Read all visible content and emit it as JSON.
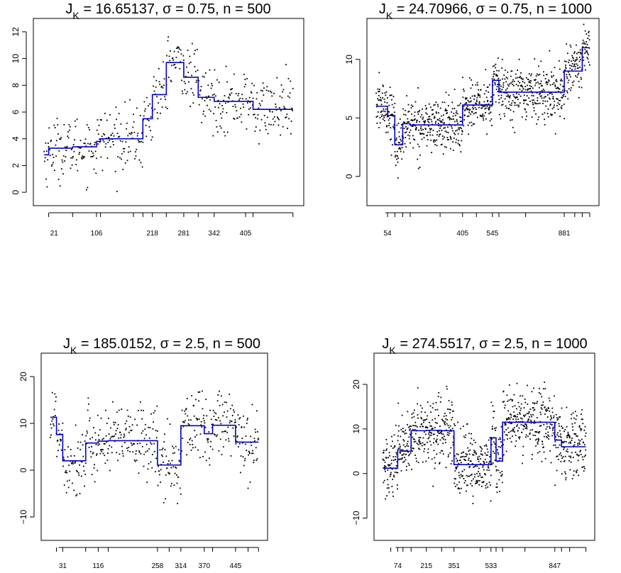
{
  "panels": [
    {
      "title": {
        "k": "K",
        "j_value": "16.65137",
        "sigma": "0.75",
        "n": "500"
      },
      "ylim": [
        -1,
        13
      ],
      "y_ticks": [
        0,
        2,
        4,
        6,
        8,
        10,
        12
      ],
      "changepoints": [
        21,
        106,
        218,
        281,
        342,
        405
      ],
      "changepoint_labels": [
        "21",
        "106",
        "218",
        "281",
        "342",
        "405"
      ]
    },
    {
      "title": {
        "k": "K",
        "j_value": "24.70966",
        "sigma": "0.75",
        "n": "1000"
      },
      "ylim": [
        -2.5,
        13.5
      ],
      "y_ticks": [
        0,
        5,
        10
      ],
      "changepoints": [
        54,
        405,
        545,
        881
      ],
      "changepoint_labels": [
        "54",
        "405",
        "545",
        "881"
      ]
    },
    {
      "title": {
        "k": "K",
        "j_value": "185.0152",
        "sigma": "2.5",
        "n": "500"
      },
      "ylim": [
        -15,
        25
      ],
      "y_ticks": [
        -10,
        0,
        10,
        20
      ],
      "changepoints": [
        31,
        116,
        258,
        314,
        370,
        445
      ],
      "changepoint_labels": [
        "31",
        "116",
        "258",
        "314",
        "370",
        "445"
      ]
    },
    {
      "title": {
        "k": "K",
        "j_value": "274.5517",
        "sigma": "2.5",
        "n": "1000"
      },
      "ylim": [
        -15,
        27
      ],
      "y_ticks": [
        -10,
        0,
        10,
        20
      ],
      "changepoints": [
        74,
        215,
        351,
        533,
        847
      ],
      "changepoint_labels": [
        "74",
        "215",
        "351",
        "533",
        "847"
      ]
    }
  ],
  "chart_data": [
    {
      "type": "scatter",
      "title": "J_K = 16.65137, σ = 0.75, n = 500",
      "n": 500,
      "sigma": 0.75,
      "xlim": [
        1,
        500
      ],
      "ylim": [
        -1,
        13
      ],
      "x_tick_labels": [
        "21",
        "106",
        "218",
        "281",
        "342",
        "405"
      ],
      "y_tick_labels": [
        "0",
        "2",
        "4",
        "6",
        "8",
        "10",
        "12"
      ],
      "fit": {
        "name": "piecewise-constant fit",
        "color": "#0000cc",
        "segments": [
          {
            "x": [
              1,
              10
            ],
            "y": 2.8
          },
          {
            "x": [
              10,
              58
            ],
            "y": 3.3
          },
          {
            "x": [
              58,
              106
            ],
            "y": 3.4
          },
          {
            "x": [
              106,
              114
            ],
            "y": 3.8
          },
          {
            "x": [
              114,
              180
            ],
            "y": 4.0
          },
          {
            "x": [
              180,
              199
            ],
            "y": 4.0
          },
          {
            "x": [
              199,
              218
            ],
            "y": 5.5
          },
          {
            "x": [
              218,
              246
            ],
            "y": 7.3
          },
          {
            "x": [
              246,
              281
            ],
            "y": 9.7
          },
          {
            "x": [
              281,
              310
            ],
            "y": 8.6
          },
          {
            "x": [
              310,
              342
            ],
            "y": 7.1
          },
          {
            "x": [
              342,
              405
            ],
            "y": 6.8
          },
          {
            "x": [
              405,
              420
            ],
            "y": 6.8
          },
          {
            "x": [
              420,
              500
            ],
            "y": 6.2
          }
        ]
      }
    },
    {
      "type": "scatter",
      "title": "J_K = 24.70966, σ = 0.75, n = 1000",
      "n": 1000,
      "sigma": 0.75,
      "xlim": [
        1,
        1000
      ],
      "ylim": [
        -2.5,
        13.5
      ],
      "x_tick_labels": [
        "54",
        "405",
        "545",
        "881"
      ],
      "y_tick_labels": [
        "0",
        "5",
        "10"
      ],
      "fit": {
        "name": "piecewise-constant fit",
        "color": "#0000cc",
        "segments": [
          {
            "x": [
              1,
              54
            ],
            "y": 6.0
          },
          {
            "x": [
              54,
              88
            ],
            "y": 5.2
          },
          {
            "x": [
              88,
              125
            ],
            "y": 2.7
          },
          {
            "x": [
              125,
              160
            ],
            "y": 4.5
          },
          {
            "x": [
              160,
              300
            ],
            "y": 4.4
          },
          {
            "x": [
              300,
              405
            ],
            "y": 4.4
          },
          {
            "x": [
              405,
              470
            ],
            "y": 6.1
          },
          {
            "x": [
              470,
              545
            ],
            "y": 6.1
          },
          {
            "x": [
              545,
              575
            ],
            "y": 8.2
          },
          {
            "x": [
              575,
              700
            ],
            "y": 7.2
          },
          {
            "x": [
              700,
              881
            ],
            "y": 7.2
          },
          {
            "x": [
              881,
              930
            ],
            "y": 9.0
          },
          {
            "x": [
              930,
              965
            ],
            "y": 9.0
          },
          {
            "x": [
              965,
              1000
            ],
            "y": 11.0
          }
        ]
      }
    },
    {
      "type": "scatter",
      "title": "J_K = 185.0152, σ = 2.5, n = 500",
      "n": 500,
      "sigma": 2.5,
      "xlim": [
        1,
        500
      ],
      "ylim": [
        -15,
        25
      ],
      "x_tick_labels": [
        "31",
        "116",
        "258",
        "314",
        "370",
        "445"
      ],
      "y_tick_labels": [
        "−10",
        "0",
        "10",
        "20"
      ],
      "fit": {
        "name": "piecewise-constant fit",
        "color": "#0000cc",
        "segments": [
          {
            "x": [
              1,
              16
            ],
            "y": 11.3
          },
          {
            "x": [
              16,
              31
            ],
            "y": 7.6
          },
          {
            "x": [
              31,
              86
            ],
            "y": 2.0
          },
          {
            "x": [
              86,
              116
            ],
            "y": 5.8
          },
          {
            "x": [
              116,
              140
            ],
            "y": 6.2
          },
          {
            "x": [
              140,
              258
            ],
            "y": 6.3
          },
          {
            "x": [
              258,
              286
            ],
            "y": 1.1
          },
          {
            "x": [
              286,
              314
            ],
            "y": 1.1
          },
          {
            "x": [
              314,
              370
            ],
            "y": 9.5
          },
          {
            "x": [
              370,
              390
            ],
            "y": 7.8
          },
          {
            "x": [
              390,
              445
            ],
            "y": 9.6
          },
          {
            "x": [
              445,
              475
            ],
            "y": 6.0
          },
          {
            "x": [
              475,
              500
            ],
            "y": 6.0
          }
        ]
      }
    },
    {
      "type": "scatter",
      "title": "J_K = 274.5517, σ = 2.5, n = 1000",
      "n": 1000,
      "sigma": 2.5,
      "xlim": [
        1,
        1000
      ],
      "ylim": [
        -15,
        27
      ],
      "x_tick_labels": [
        "74",
        "215",
        "351",
        "533",
        "847"
      ],
      "y_tick_labels": [
        "−10",
        "0",
        "10",
        "20"
      ],
      "fit": {
        "name": "piecewise-constant fit",
        "color": "#0000cc",
        "segments": [
          {
            "x": [
              1,
              40
            ],
            "y": 1.2
          },
          {
            "x": [
              40,
              74
            ],
            "y": 1.2
          },
          {
            "x": [
              74,
              100
            ],
            "y": 5.3
          },
          {
            "x": [
              100,
              140
            ],
            "y": 5.0
          },
          {
            "x": [
              140,
              215
            ],
            "y": 9.6
          },
          {
            "x": [
              215,
              290
            ],
            "y": 9.7
          },
          {
            "x": [
              290,
              351
            ],
            "y": 9.6
          },
          {
            "x": [
              351,
              480
            ],
            "y": 2.0
          },
          {
            "x": [
              480,
              533
            ],
            "y": 2.0
          },
          {
            "x": [
              533,
              558
            ],
            "y": 8.0
          },
          {
            "x": [
              558,
              590
            ],
            "y": 2.8
          },
          {
            "x": [
              590,
              700
            ],
            "y": 11.5
          },
          {
            "x": [
              700,
              847
            ],
            "y": 11.5
          },
          {
            "x": [
              847,
              880
            ],
            "y": 7.5
          },
          {
            "x": [
              880,
              920
            ],
            "y": 6.0
          },
          {
            "x": [
              920,
              1000
            ],
            "y": 6.0
          }
        ]
      }
    }
  ]
}
